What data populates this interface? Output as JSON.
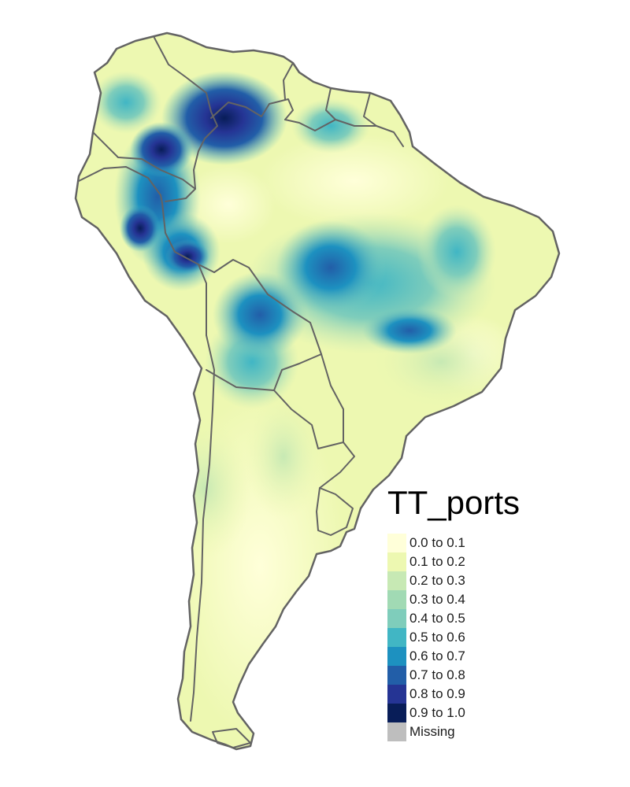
{
  "legend": {
    "title": "TT_ports",
    "items": [
      {
        "label": "0.0 to 0.1",
        "color": "#ffffd9"
      },
      {
        "label": "0.1 to 0.2",
        "color": "#edf8b1"
      },
      {
        "label": "0.2 to 0.3",
        "color": "#c7e9b4"
      },
      {
        "label": "0.3 to 0.4",
        "color": "#a1dab4"
      },
      {
        "label": "0.4 to 0.5",
        "color": "#7fcdbb"
      },
      {
        "label": "0.5 to 0.6",
        "color": "#41b6c4"
      },
      {
        "label": "0.6 to 0.7",
        "color": "#1d91c0"
      },
      {
        "label": "0.7 to 0.8",
        "color": "#225ea8"
      },
      {
        "label": "0.8 to 0.9",
        "color": "#253494"
      },
      {
        "label": "0.9 to 1.0",
        "color": "#081d58"
      },
      {
        "label": "Missing",
        "color": "#bebebe"
      }
    ]
  },
  "map": {
    "border_color": "#636363"
  }
}
